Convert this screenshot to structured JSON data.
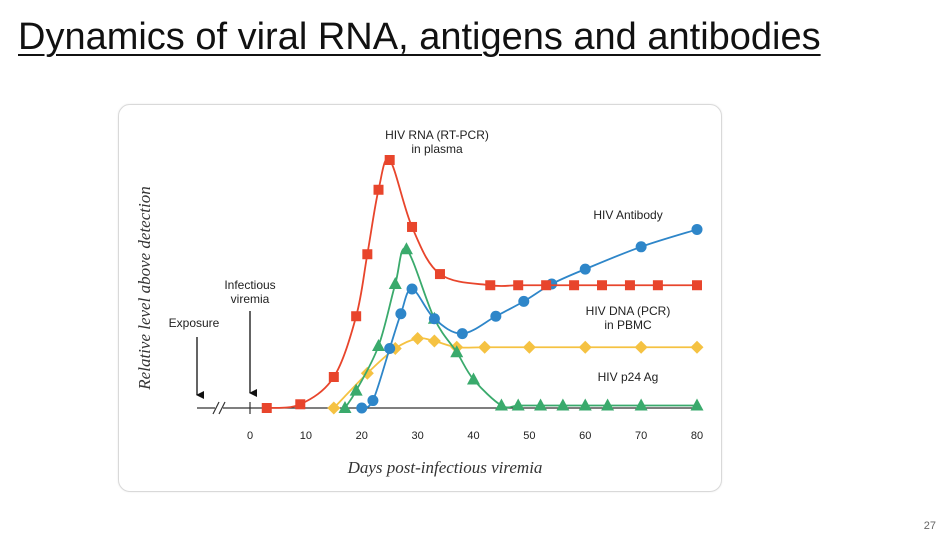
{
  "slide": {
    "title": "Dynamics of viral RNA, antigens and antibodies",
    "page_number": "27"
  },
  "chart_data": {
    "type": "line",
    "xlabel": "Days post-infectious viremia",
    "ylabel": "Relative level above detection",
    "xlim": [
      0,
      80
    ],
    "x_ticks": [
      0,
      10,
      20,
      30,
      40,
      50,
      60,
      70,
      80
    ],
    "x_axis_break": true,
    "grid": false,
    "legend": "inline labels next to each curve",
    "annotations": [
      {
        "label": "Exposure"
      },
      {
        "label": "Infectious viremia"
      }
    ],
    "series": [
      {
        "name": "HIV RNA (RT-PCR) in plasma",
        "color": "#e8452c",
        "marker": "square",
        "points": [
          [
            3,
            0
          ],
          [
            9,
            1.5
          ],
          [
            15,
            12.5
          ],
          [
            19,
            37
          ],
          [
            21,
            62
          ],
          [
            23,
            88
          ],
          [
            25,
            100
          ],
          [
            29,
            73
          ],
          [
            34,
            54
          ],
          [
            43,
            49.5
          ],
          [
            48,
            49.5
          ],
          [
            53,
            49.5
          ],
          [
            58,
            49.5
          ],
          [
            63,
            49.5
          ],
          [
            68,
            49.5
          ],
          [
            73,
            49.5
          ],
          [
            80,
            49.5
          ]
        ]
      },
      {
        "name": "HIV Antibody",
        "color": "#2e86c9",
        "marker": "circle",
        "points": [
          [
            20,
            0
          ],
          [
            22,
            3
          ],
          [
            25,
            24
          ],
          [
            27,
            38
          ],
          [
            29,
            48
          ],
          [
            33,
            36
          ],
          [
            38,
            30
          ],
          [
            44,
            37
          ],
          [
            49,
            43
          ],
          [
            54,
            50
          ],
          [
            60,
            56
          ],
          [
            70,
            65
          ],
          [
            80,
            72
          ]
        ]
      },
      {
        "name": "HIV DNA (PCR) in PBMC",
        "color": "#f5c242",
        "marker": "diamond",
        "points": [
          [
            15,
            0
          ],
          [
            21,
            14
          ],
          [
            26,
            24
          ],
          [
            30,
            28
          ],
          [
            33,
            27
          ],
          [
            37,
            24.5
          ],
          [
            42,
            24.5
          ],
          [
            50,
            24.5
          ],
          [
            60,
            24.5
          ],
          [
            70,
            24.5
          ],
          [
            80,
            24.5
          ]
        ]
      },
      {
        "name": "HIV p24 Ag",
        "color": "#3aaa6c",
        "marker": "triangle",
        "points": [
          [
            17,
            0
          ],
          [
            19,
            7
          ],
          [
            23,
            25
          ],
          [
            26,
            50
          ],
          [
            28,
            64
          ],
          [
            33,
            36
          ],
          [
            37,
            22.5
          ],
          [
            40,
            11.5
          ],
          [
            45,
            1
          ],
          [
            48,
            1
          ],
          [
            52,
            1
          ],
          [
            56,
            1
          ],
          [
            60,
            1
          ],
          [
            64,
            1
          ],
          [
            70,
            1
          ],
          [
            80,
            1
          ]
        ]
      }
    ]
  }
}
